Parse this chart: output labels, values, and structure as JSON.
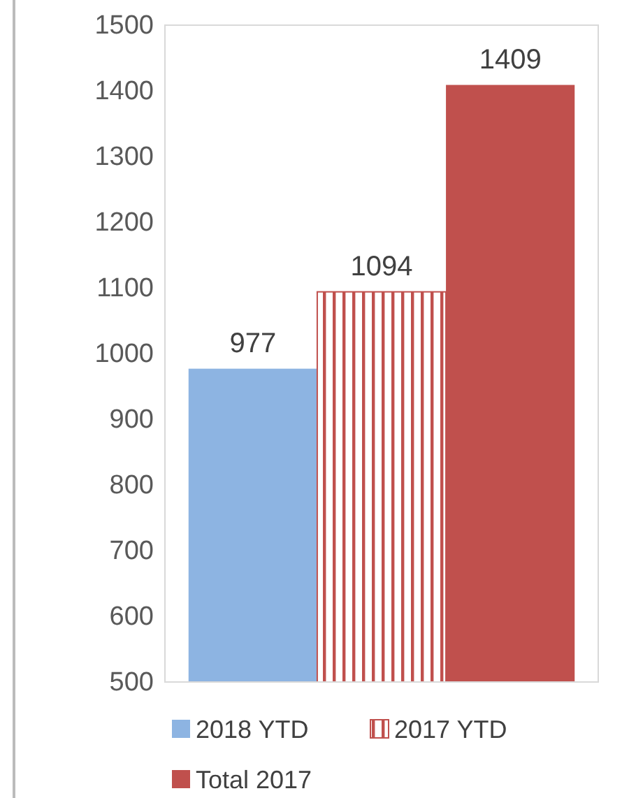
{
  "chart_data": {
    "type": "bar",
    "categories": [
      null
    ],
    "series": [
      {
        "name": "2018 YTD",
        "color": "#8db4e2",
        "values": [
          977
        ]
      },
      {
        "name": "2017 YTD",
        "color": "#c0504d",
        "values": [
          1094
        ]
      },
      {
        "name": "Total 2017",
        "color": "#c0504d",
        "values": [
          1409
        ]
      }
    ],
    "ylim": [
      500,
      1500
    ],
    "yticks": [
      500,
      600,
      700,
      800,
      900,
      1000,
      1100,
      1200,
      1300,
      1400,
      1500
    ],
    "data_labels": true,
    "legend": "bottom",
    "grid": false
  }
}
